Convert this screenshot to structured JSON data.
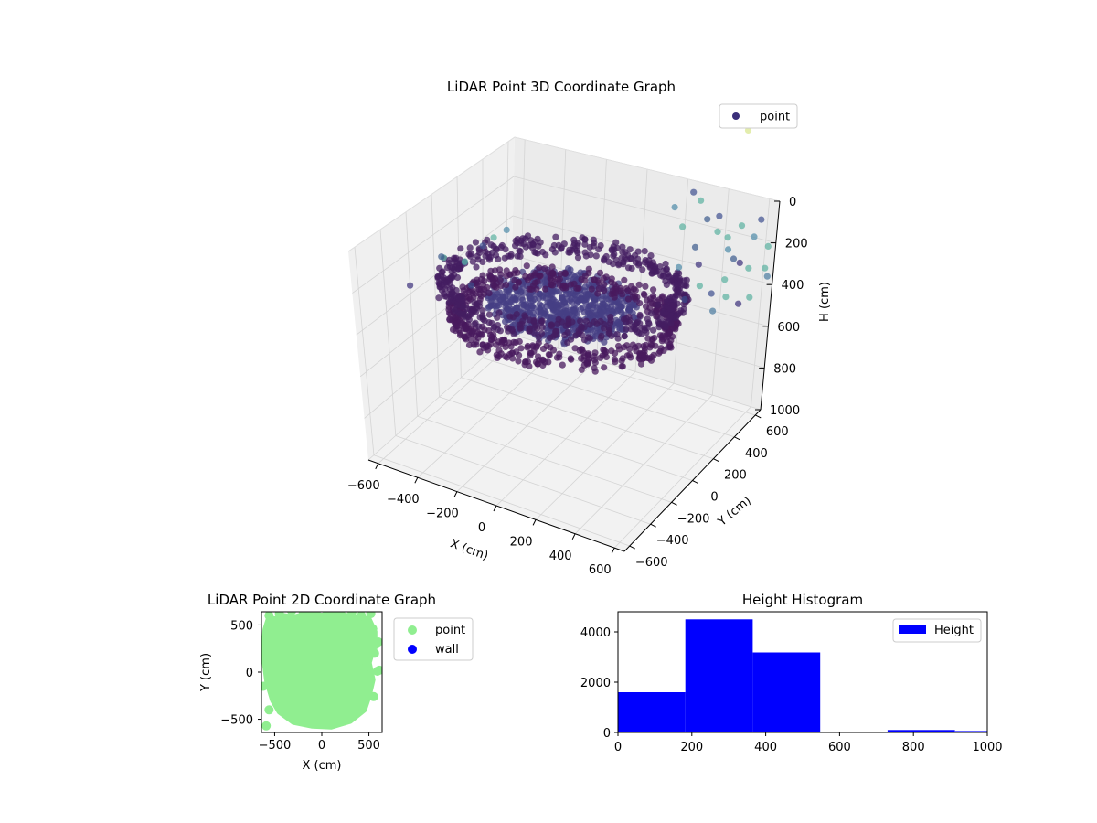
{
  "chart_data": [
    {
      "type": "scatter3d",
      "title": "LiDAR Point 3D Coordinate Graph",
      "xlabel": "X (cm)",
      "ylabel": "Y (cm)",
      "zlabel": "H (cm)",
      "xlim": [
        -650,
        650
      ],
      "ylim": [
        -650,
        650
      ],
      "zlim": [
        1000,
        0
      ],
      "z_inverted": true,
      "xticks": [
        "−600",
        "−400",
        "−200",
        "0",
        "200",
        "400",
        "600"
      ],
      "yticks": [
        "−600",
        "−400",
        "−200",
        "0",
        "200",
        "400",
        "600"
      ],
      "zticks": [
        "0",
        "200",
        "400",
        "600",
        "800",
        "1000"
      ],
      "colormap": "viridis",
      "legend": {
        "placement": "top-right",
        "entries": [
          {
            "label": "point",
            "color": "#3b2f7a"
          }
        ]
      },
      "series": [
        {
          "name": "point",
          "clusters": [
            {
              "shape": "ring",
              "center": [
                0,
                0
              ],
              "radius": 520,
              "h": 300,
              "color": "#441d62"
            },
            {
              "shape": "disk",
              "center": [
                0,
                0
              ],
              "radius": 330,
              "h": 380,
              "color": "#453f84"
            },
            {
              "shape": "ring",
              "center": [
                0,
                0
              ],
              "radius": 480,
              "h": 440,
              "color": "#481a5e"
            }
          ],
          "outliers": [
            {
              "x": -600,
              "y": 0,
              "h": 300,
              "color": "#5ab0a0"
            },
            {
              "x": -560,
              "y": -80,
              "h": 250,
              "color": "#3a5a8c"
            },
            {
              "x": -520,
              "y": 40,
              "h": 320,
              "color": "#4a7aa0"
            },
            {
              "x": -480,
              "y": -20,
              "h": 280,
              "color": "#5aa8a0"
            },
            {
              "x": -450,
              "y": 80,
              "h": 240,
              "color": "#3d4f8f"
            },
            {
              "x": -420,
              "y": 120,
              "h": 210,
              "color": "#5ab0a0"
            },
            {
              "x": -400,
              "y": -100,
              "h": 340,
              "color": "#3a4a8a"
            },
            {
              "x": -380,
              "y": 160,
              "h": 180,
              "color": "#4d8aa8"
            },
            {
              "x": -650,
              "y": -200,
              "h": 360,
              "color": "#3b2f7a"
            },
            {
              "x": 300,
              "y": 600,
              "h": 60,
              "color": "#5ab0a0"
            },
            {
              "x": 350,
              "y": 580,
              "h": 130,
              "color": "#3a5a8c"
            },
            {
              "x": 380,
              "y": 620,
              "h": 200,
              "color": "#5ab0a0"
            },
            {
              "x": 420,
              "y": 560,
              "h": 90,
              "color": "#3d4f8f"
            },
            {
              "x": 450,
              "y": 600,
              "h": 260,
              "color": "#4d8aa8"
            },
            {
              "x": 480,
              "y": 540,
              "h": 170,
              "color": "#5ab0a0"
            },
            {
              "x": 500,
              "y": 620,
              "h": 320,
              "color": "#3b2f7a"
            },
            {
              "x": 520,
              "y": 580,
              "h": 120,
              "color": "#5ab0a0"
            },
            {
              "x": 540,
              "y": 500,
              "h": 240,
              "color": "#3a5a8c"
            },
            {
              "x": 560,
              "y": 620,
              "h": 180,
              "color": "#4d8aa8"
            },
            {
              "x": 580,
              "y": 560,
              "h": 300,
              "color": "#5ab0a0"
            },
            {
              "x": 600,
              "y": 600,
              "h": 80,
              "color": "#3d4f8f"
            },
            {
              "x": 620,
              "y": 640,
              "h": 220,
              "color": "#5ab0a0"
            },
            {
              "x": 640,
              "y": 620,
              "h": 350,
              "color": "#4a7aa0"
            },
            {
              "x": 400,
              "y": 450,
              "h": 280,
              "color": "#3b2f7a"
            },
            {
              "x": 440,
              "y": 400,
              "h": 350,
              "color": "#5ab0a0"
            },
            {
              "x": 360,
              "y": 480,
              "h": 220,
              "color": "#3a5a8c"
            },
            {
              "x": 320,
              "y": 420,
              "h": 300,
              "color": "#4d8aa8"
            },
            {
              "x": 280,
              "y": 500,
              "h": 150,
              "color": "#5ab0a0"
            },
            {
              "x": 470,
              "y": 450,
              "h": 400,
              "color": "#3d4f8f"
            },
            {
              "x": 510,
              "y": 400,
              "h": 450,
              "color": "#4a7aa0"
            },
            {
              "x": 560,
              "y": 420,
              "h": 380,
              "color": "#5ab0a0"
            },
            {
              "x": 600,
              "y": 460,
              "h": 420,
              "color": "#3b2f7a"
            },
            {
              "x": 520,
              "y": 470,
              "h": 330,
              "color": "#5ab0a0"
            },
            {
              "x": 380,
              "y": 380,
              "h": 420,
              "color": "#3a4a8a"
            },
            {
              "x": 200,
              "y": 560,
              "h": 100,
              "color": "#4d8aa8"
            },
            {
              "x": 250,
              "y": 620,
              "h": 40,
              "color": "#3d4f8f"
            },
            {
              "x": 660,
              "y": 560,
              "h": 280,
              "color": "#5ab0a0"
            },
            {
              "x": 630,
              "y": 500,
              "h": 400,
              "color": "#5ab0a0"
            },
            {
              "x": 470,
              "y": 650,
              "h": -300,
              "color": "#d7e68a"
            }
          ]
        }
      ]
    },
    {
      "type": "scatter",
      "title": "LiDAR Point 2D Coordinate Graph",
      "xlabel": "X (cm)",
      "ylabel": "Y (cm)",
      "xlim": [
        -640,
        640
      ],
      "ylim": [
        -640,
        640
      ],
      "xticks": [
        "−500",
        "0",
        "500"
      ],
      "yticks": [
        "−500",
        "0",
        "500"
      ],
      "legend": {
        "placement": "outside-right",
        "entries": [
          {
            "label": "point",
            "color": "#90ee90"
          },
          {
            "label": "wall",
            "color": "#0000ff"
          }
        ]
      },
      "series": [
        {
          "name": "point",
          "color": "#90ee90",
          "outline": [
            [
              -620,
              200
            ],
            [
              -600,
              450
            ],
            [
              -560,
              580
            ],
            [
              -500,
              560
            ],
            [
              -420,
              600
            ],
            [
              -300,
              580
            ],
            [
              -150,
              620
            ],
            [
              0,
              600
            ],
            [
              100,
              620
            ],
            [
              250,
              600
            ],
            [
              400,
              580
            ],
            [
              500,
              560
            ],
            [
              560,
              430
            ],
            [
              560,
              300
            ],
            [
              500,
              100
            ],
            [
              540,
              -80
            ],
            [
              500,
              -250
            ],
            [
              450,
              -400
            ],
            [
              300,
              -520
            ],
            [
              100,
              -580
            ],
            [
              -100,
              -570
            ],
            [
              -300,
              -530
            ],
            [
              -450,
              -420
            ],
            [
              -520,
              -300
            ],
            [
              -580,
              -100
            ],
            [
              -600,
              50
            ]
          ],
          "points": [
            [
              -590,
              -570
            ],
            [
              -560,
              -400
            ],
            [
              -620,
              -150
            ],
            [
              -600,
              350
            ],
            [
              -560,
              600
            ],
            [
              -450,
              620
            ],
            [
              -320,
              650
            ],
            [
              -200,
              650
            ],
            [
              -60,
              640
            ],
            [
              60,
              630
            ],
            [
              200,
              640
            ],
            [
              320,
              640
            ],
            [
              420,
              600
            ],
            [
              520,
              640
            ],
            [
              540,
              460
            ],
            [
              560,
              200
            ],
            [
              460,
              120
            ],
            [
              590,
              10
            ],
            [
              610,
              20
            ],
            [
              530,
              280
            ],
            [
              570,
              290
            ],
            [
              600,
              320
            ],
            [
              480,
              -250
            ],
            [
              550,
              -260
            ],
            [
              520,
              620
            ]
          ]
        },
        {
          "name": "wall",
          "color": "#0000ff",
          "points": []
        }
      ]
    },
    {
      "type": "bar",
      "title": "Height Histogram",
      "xlabel": "",
      "ylabel": "",
      "xlim": [
        0,
        1000
      ],
      "ylim": [
        0,
        4800
      ],
      "xticks": [
        "0",
        "200",
        "400",
        "600",
        "800",
        "1000"
      ],
      "yticks": [
        "0",
        "2000",
        "4000"
      ],
      "legend": {
        "placement": "top-right",
        "entries": [
          {
            "label": "Height",
            "color": "#0000ff"
          }
        ]
      },
      "series": [
        {
          "name": "Height",
          "color": "#0000ff",
          "bins": [
            [
              0,
              182.5
            ],
            [
              182.5,
              365
            ],
            [
              365,
              547.5
            ],
            [
              547.5,
              730
            ],
            [
              730,
              912.5
            ],
            [
              912.5,
              1000
            ]
          ],
          "values": [
            1600,
            4500,
            3180,
            30,
            100,
            60
          ]
        }
      ]
    }
  ]
}
